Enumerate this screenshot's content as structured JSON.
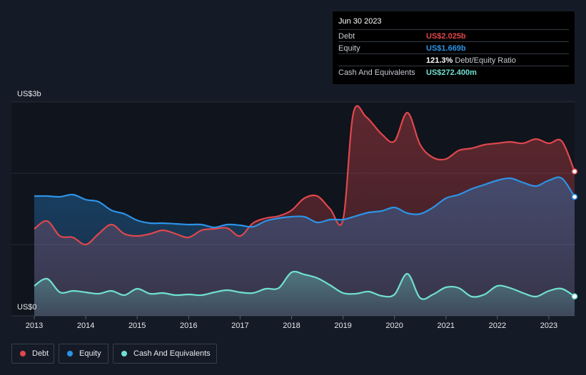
{
  "tooltip": {
    "date": "Jun 30 2023",
    "rows": [
      {
        "label": "Debt",
        "value": "US$2.025b",
        "color": "#e0474c"
      },
      {
        "label": "Equity",
        "value": "US$1.669b",
        "color": "#2d93e6"
      },
      {
        "label": "",
        "value": "121.3%",
        "sub": "Debt/Equity Ratio",
        "color": "#ffffff"
      },
      {
        "label": "Cash And Equivalents",
        "value": "US$272.400m",
        "color": "#70e0cf"
      }
    ]
  },
  "legend": [
    {
      "label": "Debt",
      "color": "#e0474c"
    },
    {
      "label": "Equity",
      "color": "#2d93e6"
    },
    {
      "label": "Cash And Equivalents",
      "color": "#70e0cf"
    }
  ],
  "chart_data": {
    "type": "area",
    "ylabel_top": "US$3b",
    "ylabel_bottom": "US$0",
    "ylim": [
      0,
      3.0
    ],
    "xlim": [
      2013.0,
      2023.5
    ],
    "x_ticks": [
      "2013",
      "2014",
      "2015",
      "2016",
      "2017",
      "2018",
      "2019",
      "2020",
      "2021",
      "2022",
      "2023"
    ],
    "grid": true,
    "legend_position": "bottom-left",
    "series": [
      {
        "name": "Debt",
        "color": "#e0474c",
        "points": [
          [
            2013.0,
            1.22
          ],
          [
            2013.25,
            1.33
          ],
          [
            2013.5,
            1.12
          ],
          [
            2013.75,
            1.1
          ],
          [
            2014.0,
            1.0
          ],
          [
            2014.25,
            1.15
          ],
          [
            2014.5,
            1.28
          ],
          [
            2014.75,
            1.15
          ],
          [
            2015.0,
            1.12
          ],
          [
            2015.25,
            1.15
          ],
          [
            2015.5,
            1.2
          ],
          [
            2015.75,
            1.15
          ],
          [
            2016.0,
            1.1
          ],
          [
            2016.25,
            1.2
          ],
          [
            2016.5,
            1.22
          ],
          [
            2016.75,
            1.23
          ],
          [
            2017.0,
            1.12
          ],
          [
            2017.25,
            1.3
          ],
          [
            2017.5,
            1.37
          ],
          [
            2017.75,
            1.4
          ],
          [
            2018.0,
            1.48
          ],
          [
            2018.25,
            1.65
          ],
          [
            2018.5,
            1.68
          ],
          [
            2018.75,
            1.5
          ],
          [
            2019.0,
            1.35
          ],
          [
            2019.2,
            2.84
          ],
          [
            2019.45,
            2.79
          ],
          [
            2019.75,
            2.55
          ],
          [
            2020.0,
            2.45
          ],
          [
            2020.25,
            2.85
          ],
          [
            2020.5,
            2.4
          ],
          [
            2020.75,
            2.22
          ],
          [
            2021.0,
            2.2
          ],
          [
            2021.25,
            2.32
          ],
          [
            2021.5,
            2.35
          ],
          [
            2021.75,
            2.4
          ],
          [
            2022.0,
            2.42
          ],
          [
            2022.25,
            2.44
          ],
          [
            2022.5,
            2.42
          ],
          [
            2022.75,
            2.48
          ],
          [
            2023.0,
            2.42
          ],
          [
            2023.25,
            2.45
          ],
          [
            2023.5,
            2.025
          ]
        ]
      },
      {
        "name": "Equity",
        "color": "#2d93e6",
        "points": [
          [
            2013.0,
            1.68
          ],
          [
            2013.25,
            1.68
          ],
          [
            2013.5,
            1.67
          ],
          [
            2013.75,
            1.7
          ],
          [
            2014.0,
            1.63
          ],
          [
            2014.25,
            1.6
          ],
          [
            2014.5,
            1.48
          ],
          [
            2014.75,
            1.43
          ],
          [
            2015.0,
            1.34
          ],
          [
            2015.25,
            1.3
          ],
          [
            2015.5,
            1.3
          ],
          [
            2015.75,
            1.29
          ],
          [
            2016.0,
            1.28
          ],
          [
            2016.25,
            1.28
          ],
          [
            2016.5,
            1.24
          ],
          [
            2016.75,
            1.28
          ],
          [
            2017.0,
            1.27
          ],
          [
            2017.25,
            1.25
          ],
          [
            2017.5,
            1.33
          ],
          [
            2017.75,
            1.37
          ],
          [
            2018.0,
            1.39
          ],
          [
            2018.25,
            1.39
          ],
          [
            2018.5,
            1.31
          ],
          [
            2018.75,
            1.35
          ],
          [
            2019.0,
            1.35
          ],
          [
            2019.25,
            1.4
          ],
          [
            2019.5,
            1.45
          ],
          [
            2019.75,
            1.47
          ],
          [
            2020.0,
            1.52
          ],
          [
            2020.25,
            1.44
          ],
          [
            2020.5,
            1.43
          ],
          [
            2020.75,
            1.52
          ],
          [
            2021.0,
            1.65
          ],
          [
            2021.25,
            1.7
          ],
          [
            2021.5,
            1.78
          ],
          [
            2021.75,
            1.84
          ],
          [
            2022.0,
            1.9
          ],
          [
            2022.25,
            1.93
          ],
          [
            2022.5,
            1.87
          ],
          [
            2022.75,
            1.82
          ],
          [
            2023.0,
            1.9
          ],
          [
            2023.25,
            1.93
          ],
          [
            2023.5,
            1.669
          ]
        ]
      },
      {
        "name": "Cash And Equivalents",
        "color": "#70e0cf",
        "points": [
          [
            2013.0,
            0.42
          ],
          [
            2013.25,
            0.52
          ],
          [
            2013.5,
            0.33
          ],
          [
            2013.75,
            0.35
          ],
          [
            2014.0,
            0.33
          ],
          [
            2014.25,
            0.31
          ],
          [
            2014.5,
            0.35
          ],
          [
            2014.75,
            0.29
          ],
          [
            2015.0,
            0.38
          ],
          [
            2015.25,
            0.31
          ],
          [
            2015.5,
            0.32
          ],
          [
            2015.75,
            0.29
          ],
          [
            2016.0,
            0.3
          ],
          [
            2016.25,
            0.29
          ],
          [
            2016.5,
            0.33
          ],
          [
            2016.75,
            0.36
          ],
          [
            2017.0,
            0.33
          ],
          [
            2017.25,
            0.32
          ],
          [
            2017.5,
            0.38
          ],
          [
            2017.75,
            0.39
          ],
          [
            2018.0,
            0.61
          ],
          [
            2018.25,
            0.58
          ],
          [
            2018.5,
            0.53
          ],
          [
            2018.75,
            0.43
          ],
          [
            2019.0,
            0.32
          ],
          [
            2019.25,
            0.31
          ],
          [
            2019.5,
            0.34
          ],
          [
            2019.75,
            0.28
          ],
          [
            2020.0,
            0.3
          ],
          [
            2020.25,
            0.59
          ],
          [
            2020.5,
            0.25
          ],
          [
            2020.75,
            0.3
          ],
          [
            2021.0,
            0.4
          ],
          [
            2021.25,
            0.39
          ],
          [
            2021.5,
            0.27
          ],
          [
            2021.75,
            0.3
          ],
          [
            2022.0,
            0.42
          ],
          [
            2022.25,
            0.39
          ],
          [
            2022.5,
            0.32
          ],
          [
            2022.75,
            0.27
          ],
          [
            2023.0,
            0.35
          ],
          [
            2023.25,
            0.38
          ],
          [
            2023.5,
            0.2724
          ]
        ]
      }
    ]
  }
}
